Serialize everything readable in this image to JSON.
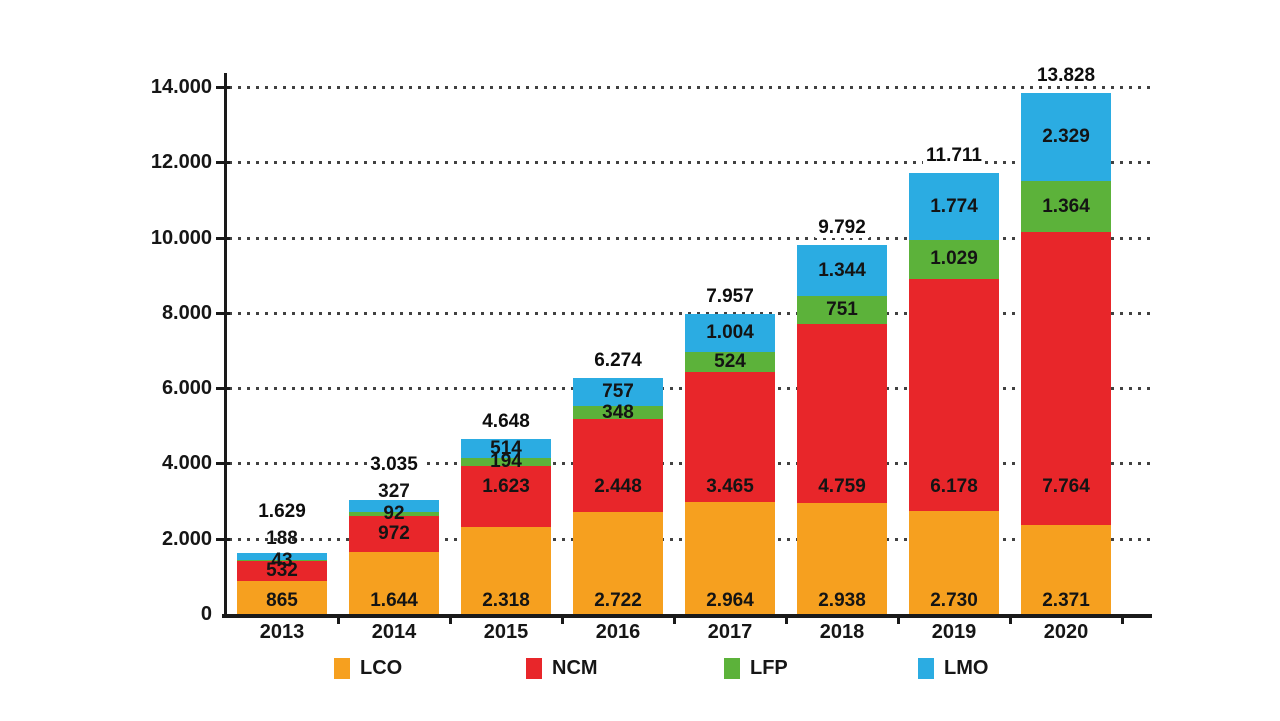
{
  "chart_data": {
    "type": "bar",
    "stacked": true,
    "title": "",
    "xlabel": "",
    "ylabel": "",
    "grid": "dotted-horizontal",
    "legend_position": "bottom",
    "categories": [
      "2013",
      "2014",
      "2015",
      "2016",
      "2017",
      "2018",
      "2019",
      "2020"
    ],
    "series": [
      {
        "name": "LCO",
        "color": "#F6A01F",
        "values": [
          865,
          1644,
          2318,
          2722,
          2964,
          2938,
          2730,
          2371
        ],
        "labels": [
          "865",
          "1.644",
          "2.318",
          "2.722",
          "2.964",
          "2.938",
          "2.730",
          "2.371"
        ]
      },
      {
        "name": "NCM",
        "color": "#E8262A",
        "values": [
          532,
          972,
          1623,
          2448,
          3465,
          4759,
          6178,
          7764
        ],
        "labels": [
          "532",
          "972",
          "1.623",
          "2.448",
          "3.465",
          "4.759",
          "6.178",
          "7.764"
        ]
      },
      {
        "name": "LFP",
        "color": "#5CB23A",
        "values": [
          43,
          92,
          194,
          348,
          524,
          751,
          1029,
          1364
        ],
        "labels": [
          "43",
          "92",
          "194",
          "348",
          "524",
          "751",
          "1.029",
          "1.364"
        ]
      },
      {
        "name": "LMO",
        "color": "#2BACE2",
        "values": [
          188,
          327,
          514,
          757,
          1004,
          1344,
          1774,
          2329
        ],
        "labels": [
          "188",
          "327",
          "514",
          "757",
          "1.004",
          "1.344",
          "1.774",
          "2.329"
        ]
      }
    ],
    "totals": [
      "1.629",
      "3.035",
      "4.648",
      "6.274",
      "7.957",
      "9.792",
      "11.711",
      "13.828"
    ],
    "y_axis": {
      "min": 0,
      "max": 14000,
      "step": 2000,
      "tick_labels": [
        "0",
        "2.000",
        "4.000",
        "6.000",
        "8.000",
        "10.000",
        "12.000",
        "14.000"
      ]
    }
  }
}
